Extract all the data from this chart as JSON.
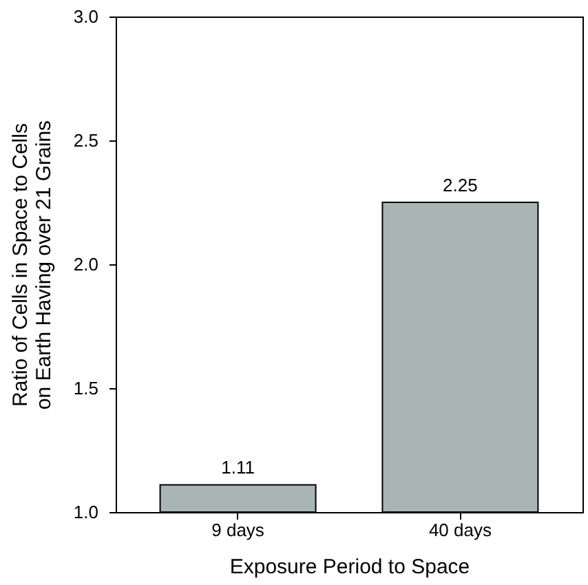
{
  "chart_data": {
    "type": "bar",
    "categories": [
      "9 days",
      "40 days"
    ],
    "values": [
      1.11,
      2.25
    ],
    "color": "#a9b5b5",
    "xlabel": "Exposure Period to Space",
    "ylabel": "Ratio of Cells in Space to Cells on Earth Having over 21 Grains",
    "ylim": [
      1.0,
      3.0
    ],
    "yticks": [
      {
        "value": 1.0,
        "label": "1.0"
      },
      {
        "value": 1.5,
        "label": "1.5"
      },
      {
        "value": 2.0,
        "label": "2.0"
      },
      {
        "value": 2.5,
        "label": "2.5"
      },
      {
        "value": 3.0,
        "label": "3.0"
      }
    ],
    "data_labels": true
  }
}
